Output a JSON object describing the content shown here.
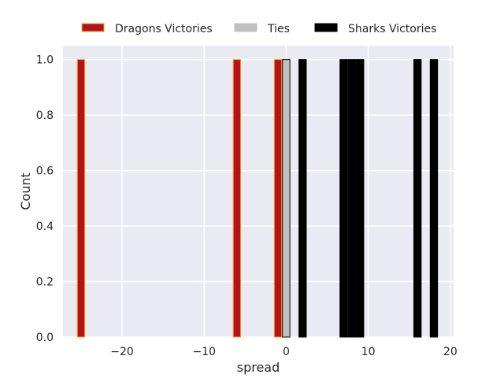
{
  "chart_data": {
    "type": "bar",
    "xlabel": "spread",
    "ylabel": "Count",
    "xlim": [
      -27.2,
      20.4
    ],
    "ylim": [
      0,
      1.05
    ],
    "bar_width": 0.9,
    "x_ticks": [
      {
        "value": -20,
        "label": "−20"
      },
      {
        "value": -10,
        "label": "−10"
      },
      {
        "value": 0,
        "label": "0"
      },
      {
        "value": 10,
        "label": "10"
      },
      {
        "value": 20,
        "label": "20"
      }
    ],
    "y_ticks": [
      {
        "value": 0,
        "label": "0.0"
      },
      {
        "value": 0.2,
        "label": "0.2"
      },
      {
        "value": 0.4,
        "label": "0.4"
      },
      {
        "value": 0.6,
        "label": "0.6"
      },
      {
        "value": 0.8,
        "label": "0.8"
      },
      {
        "value": 1.0,
        "label": "1.0"
      }
    ],
    "grid": true,
    "legend_position": "top-center, above plot",
    "series": [
      {
        "name": "Dragons Victories",
        "color": "#b5121b",
        "edge": "#f5a623",
        "points": [
          {
            "x": -25,
            "y": 1
          },
          {
            "x": -6,
            "y": 1
          },
          {
            "x": -1,
            "y": 1
          }
        ]
      },
      {
        "name": "Ties",
        "color": "#c0c0c0",
        "edge": "#000000",
        "points": [
          {
            "x": 0,
            "y": 1
          }
        ]
      },
      {
        "name": "Sharks Victories",
        "color": "#000000",
        "edge": "#000000",
        "points": [
          {
            "x": 2,
            "y": 1
          },
          {
            "x": 7,
            "y": 1
          },
          {
            "x": 8,
            "y": 1
          },
          {
            "x": 9,
            "y": 1
          },
          {
            "x": 16,
            "y": 1
          },
          {
            "x": 18,
            "y": 1
          }
        ]
      }
    ]
  }
}
